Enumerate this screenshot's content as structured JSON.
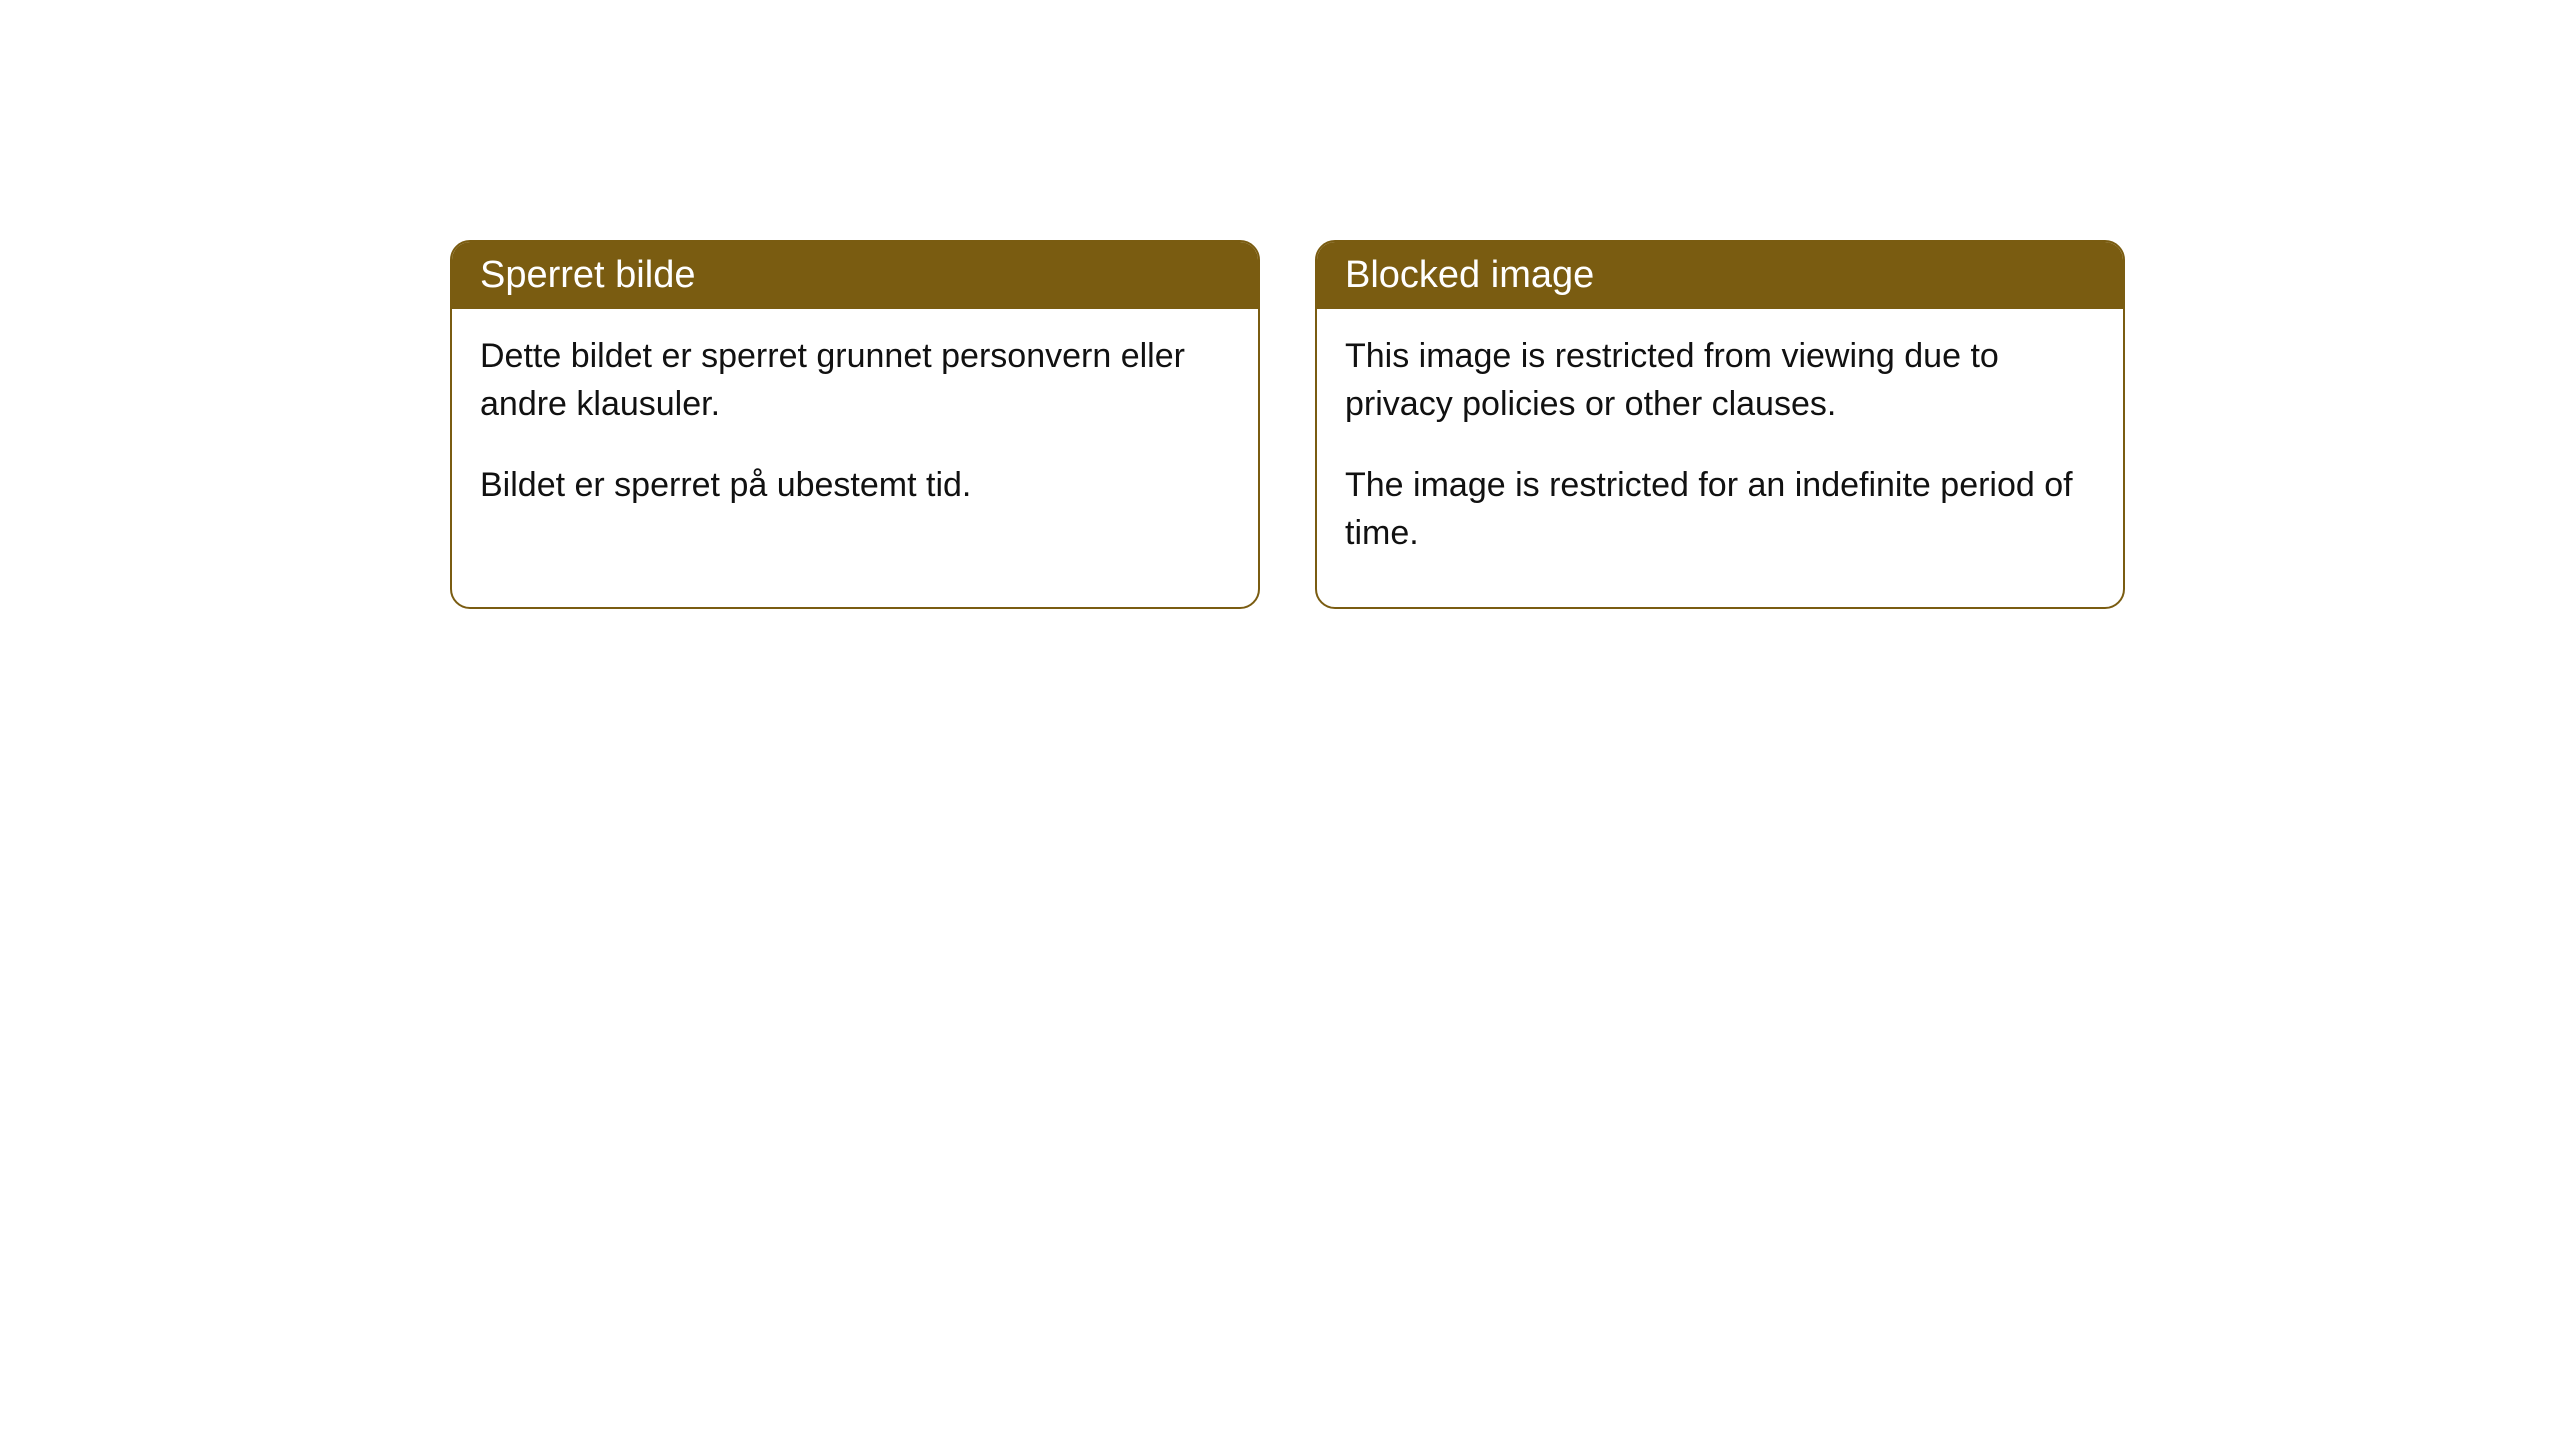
{
  "cards": [
    {
      "title": "Sperret bilde",
      "paragraph1": "Dette bildet er sperret grunnet personvern eller andre klausuler.",
      "paragraph2": "Bildet er sperret på ubestemt tid."
    },
    {
      "title": "Blocked image",
      "paragraph1": "This image is restricted from viewing due to privacy policies or other clauses.",
      "paragraph2": "The image is restricted for an indefinite period of time."
    }
  ],
  "style": {
    "header_bg": "#7a5c11",
    "header_text_color": "#ffffff",
    "body_bg": "#ffffff",
    "body_text_color": "#111111",
    "border_color": "#7a5c11",
    "border_radius": 20,
    "title_fontsize": 38,
    "body_fontsize": 34
  }
}
